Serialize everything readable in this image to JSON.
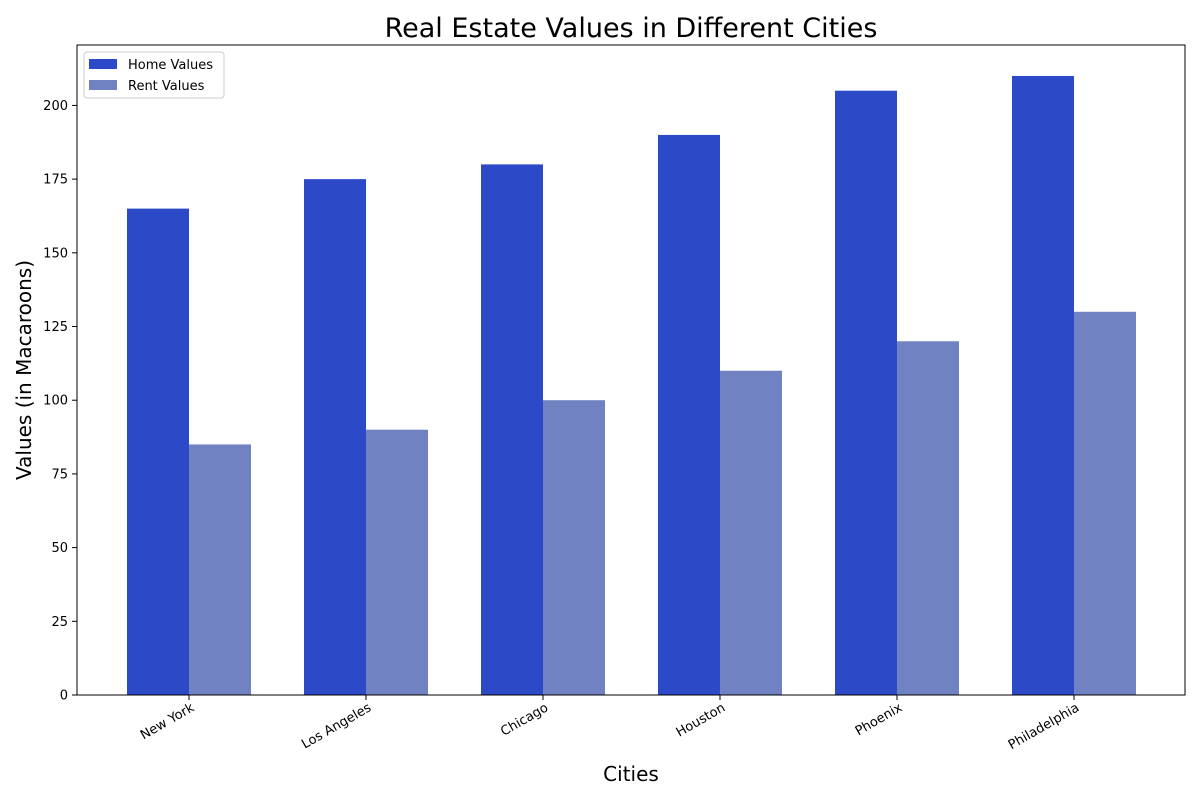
{
  "chart_data": {
    "type": "bar",
    "title": "Real Estate Values in Different Cities",
    "xlabel": "Cities",
    "ylabel": "Values (in Macaroons)",
    "categories": [
      "New York",
      "Los Angeles",
      "Chicago",
      "Houston",
      "Phoenix",
      "Philadelphia"
    ],
    "series": [
      {
        "name": "Home Values",
        "color": "#2c49c7",
        "values": [
          165,
          175,
          180,
          190,
          205,
          210
        ]
      },
      {
        "name": "Rent Values",
        "color": "#7182c2",
        "values": [
          85,
          90,
          100,
          110,
          120,
          130
        ]
      }
    ],
    "ylim": [
      0,
      220.5
    ],
    "yticks": [
      0,
      25,
      50,
      75,
      100,
      125,
      150,
      175,
      200
    ],
    "xtick_rotation": 30,
    "grid": false,
    "legend_position": "top-left"
  }
}
